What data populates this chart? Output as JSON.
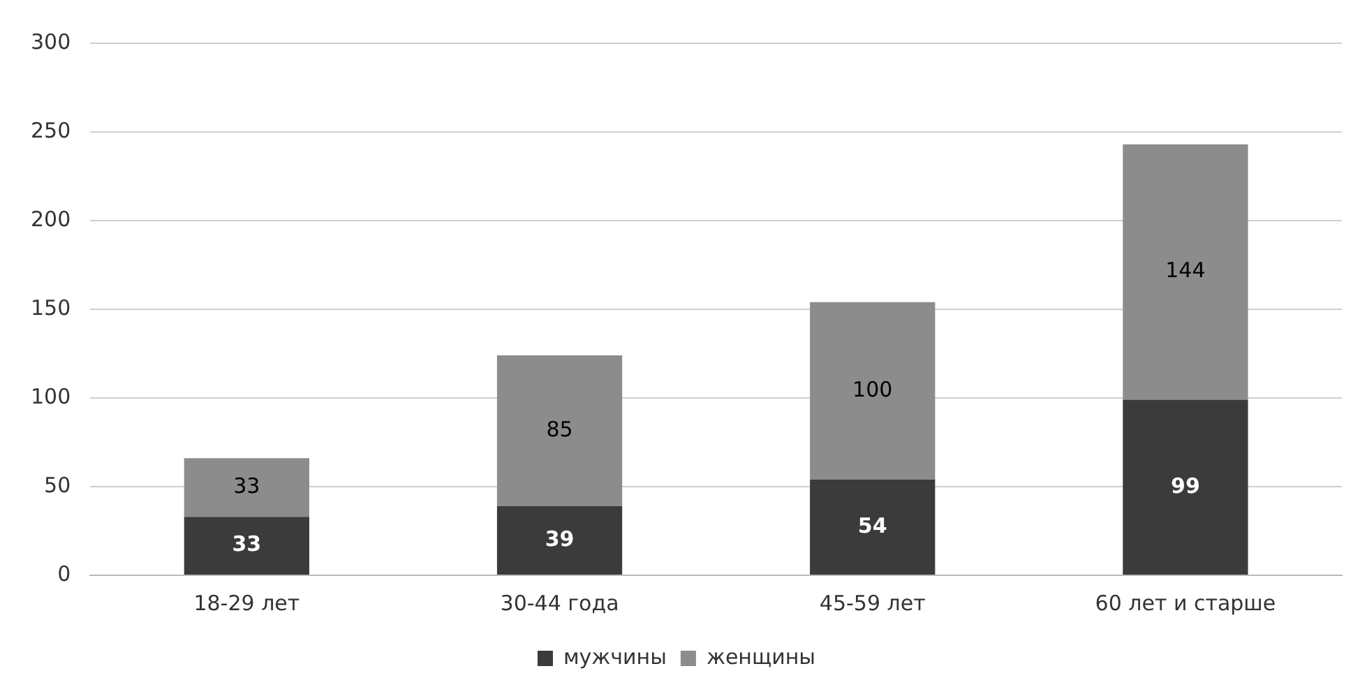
{
  "chart_data": {
    "type": "bar",
    "stacked": true,
    "categories": [
      "18-29 лет",
      "30-44 года",
      "45-59 лет",
      "60 лет и старше"
    ],
    "series": [
      {
        "name": "мужчины",
        "color": "#3b3b3b",
        "values": [
          33,
          39,
          54,
          99
        ]
      },
      {
        "name": "женщины",
        "color": "#8c8c8c",
        "values": [
          33,
          85,
          100,
          144
        ]
      }
    ],
    "ylim": [
      0,
      300
    ],
    "yticks": [
      0,
      50,
      100,
      150,
      200,
      250,
      300
    ],
    "grid": "y",
    "legend": "bottom",
    "data_labels": true
  }
}
